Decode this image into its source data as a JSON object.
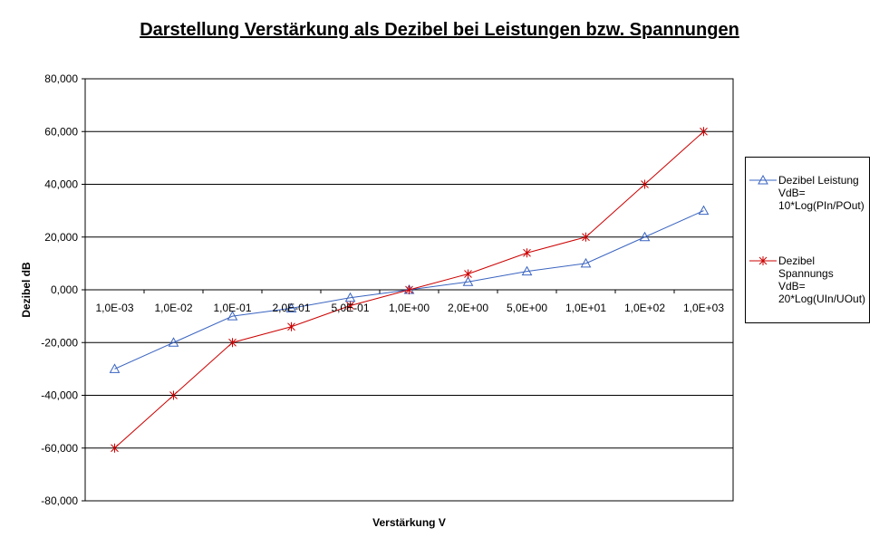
{
  "chart_data": {
    "type": "line",
    "title": "Darstellung Verstärkung als Dezibel bei Leistungen bzw. Spannungen",
    "xlabel": "Verstärkung V",
    "ylabel": "Dezibel dB",
    "categories": [
      "1,0E-03",
      "1,0E-02",
      "1,0E-01",
      "2,0E-01",
      "5,0E-01",
      "1,0E+00",
      "2,0E+00",
      "5,0E+00",
      "1,0E+01",
      "1,0E+02",
      "1,0E+03"
    ],
    "ylim": [
      -80,
      80
    ],
    "yticks": [
      -80,
      -60,
      -40,
      -20,
      0,
      20,
      40,
      60,
      80
    ],
    "ytick_labels": [
      "-80,000",
      "-60,000",
      "-40,000",
      "-20,000",
      "0,000",
      "20,000",
      "40,000",
      "60,000",
      "80,000"
    ],
    "grid": "horizontal",
    "legend_position": "right",
    "series": [
      {
        "name": "Dezibel Leistung\nVdB=\n10*Log(PIn/POut)",
        "color": "#3a64c0",
        "marker": "triangle",
        "values": [
          -30,
          -20,
          -10,
          -7,
          -3,
          0,
          3,
          7,
          10,
          20,
          30
        ]
      },
      {
        "name": "Dezibel\nSpannungs\nVdB=\n20*Log(UIn/UOut)",
        "color": "#cc0000",
        "marker": "asterisk",
        "values": [
          -60,
          -40,
          -20,
          -14,
          -6,
          0,
          6,
          14,
          20,
          40,
          60
        ]
      }
    ]
  }
}
